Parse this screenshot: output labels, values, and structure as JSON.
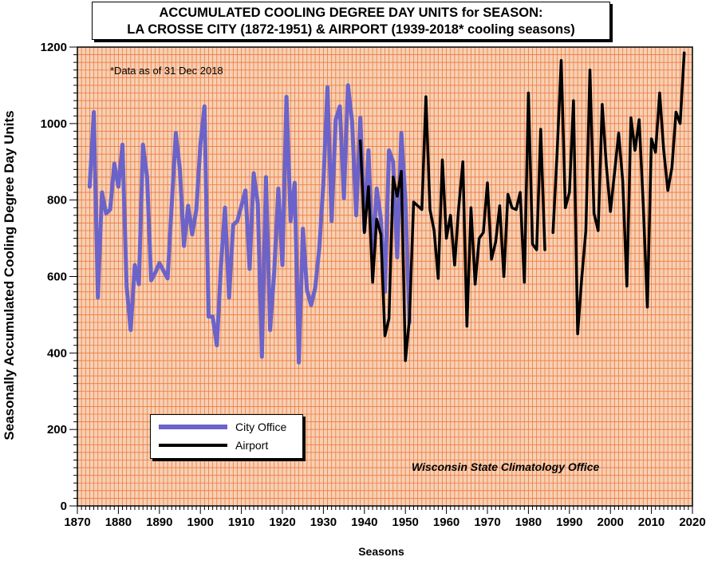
{
  "chart_data": {
    "type": "line",
    "title_line1": "ACCUMULATED COOLING DEGREE DAY UNITS for SEASON:",
    "title_line2": "LA CROSSE CITY (1872-1951) & AIRPORT (1939-2018* cooling seasons)",
    "note": "*Data as of 31 Dec 2018",
    "credit": "Wisconsin State Climatology Office",
    "xlabel": "Seasons",
    "ylabel": "Seasonally Accumulated Cooling Degree Day Units",
    "xlim": [
      1870,
      2020
    ],
    "ylim": [
      0,
      1200
    ],
    "x_ticks": [
      1870,
      1880,
      1890,
      1900,
      1910,
      1920,
      1930,
      1940,
      1950,
      1960,
      1970,
      1980,
      1990,
      2000,
      2010,
      2020
    ],
    "y_ticks": [
      0,
      200,
      400,
      600,
      800,
      1000,
      1200
    ],
    "grid": true,
    "legend_position": "bottom-left",
    "background_color": "#f6d0b5",
    "grid_color": "#f07a3a",
    "series": [
      {
        "name": "City Office",
        "color": "#6b63c9",
        "x": [
          1873,
          1874,
          1875,
          1876,
          1877,
          1878,
          1879,
          1880,
          1881,
          1882,
          1883,
          1884,
          1885,
          1886,
          1887,
          1888,
          1889,
          1890,
          1891,
          1892,
          1893,
          1894,
          1895,
          1896,
          1897,
          1898,
          1899,
          1900,
          1901,
          1902,
          1903,
          1904,
          1905,
          1906,
          1907,
          1908,
          1909,
          1910,
          1911,
          1912,
          1913,
          1914,
          1915,
          1916,
          1917,
          1918,
          1919,
          1920,
          1921,
          1922,
          1923,
          1924,
          1925,
          1926,
          1927,
          1928,
          1929,
          1930,
          1931,
          1932,
          1933,
          1934,
          1935,
          1936,
          1937,
          1938,
          1939,
          1940,
          1941,
          1942,
          1943,
          1944,
          1945,
          1946,
          1947,
          1948,
          1949,
          1950,
          1951
        ],
        "values": [
          835,
          1030,
          545,
          820,
          765,
          775,
          895,
          835,
          945,
          575,
          460,
          630,
          580,
          945,
          860,
          590,
          610,
          635,
          615,
          595,
          785,
          975,
          880,
          680,
          785,
          710,
          775,
          945,
          1045,
          495,
          495,
          420,
          625,
          780,
          545,
          735,
          745,
          785,
          825,
          620,
          870,
          790,
          390,
          860,
          460,
          610,
          830,
          630,
          1070,
          745,
          845,
          375,
          725,
          565,
          525,
          570,
          675,
          845,
          1095,
          745,
          1010,
          1045,
          805,
          1100,
          1005,
          760,
          1015,
          720,
          930,
          645,
          830,
          750,
          560,
          930,
          900,
          650,
          975,
          800,
          480
        ]
      },
      {
        "name": "Airport",
        "color": "#000000",
        "x": [
          1939,
          1940,
          1941,
          1942,
          1943,
          1944,
          1945,
          1946,
          1947,
          1948,
          1949,
          1950,
          1951,
          1952,
          1953,
          1954,
          1955,
          1956,
          1957,
          1958,
          1959,
          1960,
          1961,
          1962,
          1963,
          1964,
          1965,
          1966,
          1967,
          1968,
          1969,
          1970,
          1971,
          1972,
          1973,
          1974,
          1975,
          1976,
          1977,
          1978,
          1979,
          1980,
          1981,
          1982,
          1983,
          1984,
          1985,
          1986,
          1987,
          1988,
          1989,
          1990,
          1991,
          1992,
          1993,
          1994,
          1995,
          1996,
          1997,
          1998,
          1999,
          2000,
          2001,
          2002,
          2003,
          2004,
          2005,
          2006,
          2007,
          2008,
          2009,
          2010,
          2011,
          2012,
          2013,
          2014,
          2015,
          2016,
          2017,
          2018
        ],
        "values": [
          955,
          715,
          835,
          585,
          750,
          710,
          445,
          490,
          860,
          810,
          875,
          380,
          490,
          795,
          785,
          775,
          1070,
          775,
          720,
          595,
          905,
          700,
          760,
          630,
          780,
          900,
          470,
          780,
          580,
          700,
          715,
          845,
          645,
          690,
          785,
          600,
          815,
          780,
          775,
          820,
          585,
          1080,
          685,
          670,
          985,
          670,
          null,
          715,
          925,
          1165,
          780,
          820,
          1060,
          450,
          595,
          720,
          1140,
          765,
          720,
          1050,
          890,
          770,
          870,
          975,
          850,
          575,
          1015,
          930,
          1010,
          790,
          520,
          960,
          925,
          1080,
          930,
          825,
          885,
          1030,
          1000,
          1185
        ]
      }
    ]
  }
}
